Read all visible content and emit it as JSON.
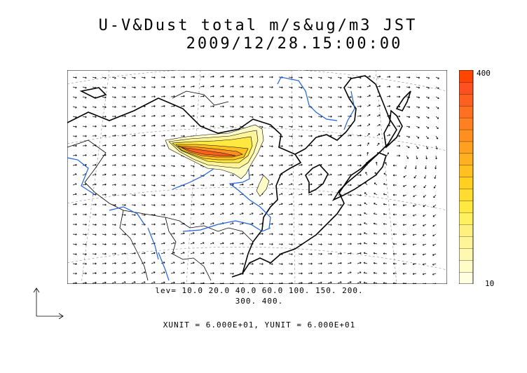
{
  "title": {
    "line1": "U-V&Dust total m/s&ug/m3 JST",
    "line2": "2009/12/28.15:00:00"
  },
  "colorbar": {
    "max_label": "400",
    "min_label": "10",
    "colors": [
      "#ffffe0",
      "#fffcc8",
      "#fff8b0",
      "#fff498",
      "#fff080",
      "#fff060",
      "#ffe840",
      "#ffdc30",
      "#ffd020",
      "#ffc020",
      "#ffb020",
      "#ffa020",
      "#ff9020",
      "#ff8020",
      "#ff7020",
      "#ff6020",
      "#ff5020",
      "#ff4500"
    ]
  },
  "levels": {
    "line1": "lev= 10.0 20.0 40.0 60.0 100. 150. 200.",
    "line2": "300. 400."
  },
  "units": {
    "text": "XUNIT = 6.000E+01, YUNIT = 6.000E+01"
  }
}
